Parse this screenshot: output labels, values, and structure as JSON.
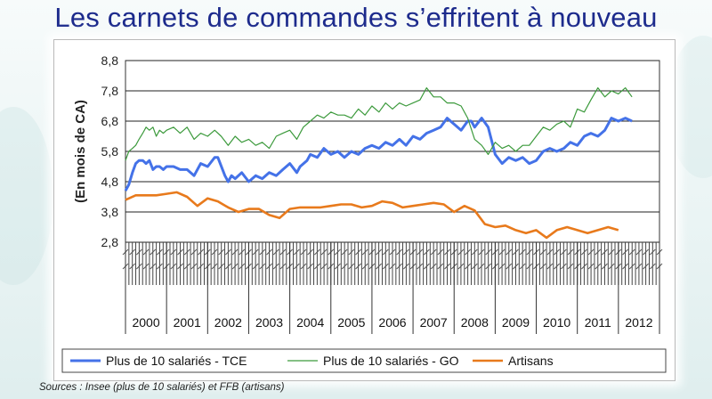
{
  "slide": {
    "title": "Les carnets de commandes s’effritent à nouveau",
    "source": "Sources : Insee (plus de 10 salariés) et FFB (artisans)"
  },
  "chart_data": {
    "type": "line",
    "title": "",
    "xlabel": "",
    "ylabel": "(En mois de CA)",
    "ylim": [
      2.8,
      8.8
    ],
    "y_ticks": [
      "2,8",
      "3,8",
      "4,8",
      "5,8",
      "6,8",
      "7,8",
      "8,8"
    ],
    "grid": true,
    "legend_position": "bottom",
    "x_years": [
      "2000",
      "2001",
      "2002",
      "2003",
      "2004",
      "2005",
      "2006",
      "2007",
      "2008",
      "2009",
      "2010",
      "2011",
      "2012"
    ],
    "x_range": [
      2000.0,
      2013.0
    ],
    "series": [
      {
        "name": "Plus de 10 salariés - TCE",
        "color": "#4472e8",
        "x": [
          2000.0,
          2000.08,
          2000.17,
          2000.25,
          2000.33,
          2000.42,
          2000.5,
          2000.58,
          2000.67,
          2000.75,
          2000.83,
          2000.92,
          2001.0,
          2001.17,
          2001.33,
          2001.5,
          2001.67,
          2001.83,
          2002.0,
          2002.17,
          2002.25,
          2002.42,
          2002.5,
          2002.58,
          2002.67,
          2002.83,
          2003.0,
          2003.17,
          2003.33,
          2003.5,
          2003.67,
          2003.83,
          2004.0,
          2004.17,
          2004.25,
          2004.42,
          2004.5,
          2004.67,
          2004.83,
          2005.0,
          2005.17,
          2005.33,
          2005.5,
          2005.67,
          2005.83,
          2006.0,
          2006.17,
          2006.33,
          2006.5,
          2006.67,
          2006.83,
          2007.0,
          2007.17,
          2007.33,
          2007.5,
          2007.67,
          2007.83,
          2008.0,
          2008.17,
          2008.33,
          2008.42,
          2008.5,
          2008.67,
          2008.83,
          2009.0,
          2009.17,
          2009.33,
          2009.5,
          2009.67,
          2009.83,
          2010.0,
          2010.17,
          2010.33,
          2010.5,
          2010.67,
          2010.83,
          2011.0,
          2011.17,
          2011.33,
          2011.5,
          2011.67,
          2011.83,
          2012.0,
          2012.17,
          2012.33
        ],
        "values": [
          4.5,
          4.7,
          5.1,
          5.4,
          5.5,
          5.5,
          5.4,
          5.5,
          5.2,
          5.3,
          5.3,
          5.2,
          5.3,
          5.3,
          5.2,
          5.2,
          5.0,
          5.4,
          5.3,
          5.6,
          5.6,
          5.0,
          4.8,
          5.0,
          4.9,
          5.1,
          4.8,
          5.0,
          4.9,
          5.1,
          5.0,
          5.2,
          5.4,
          5.1,
          5.3,
          5.5,
          5.7,
          5.6,
          5.9,
          5.7,
          5.8,
          5.6,
          5.8,
          5.7,
          5.9,
          6.0,
          5.9,
          6.1,
          6.0,
          6.2,
          6.0,
          6.3,
          6.2,
          6.4,
          6.5,
          6.6,
          6.9,
          6.7,
          6.5,
          6.8,
          6.8,
          6.6,
          6.9,
          6.6,
          5.7,
          5.4,
          5.6,
          5.5,
          5.6,
          5.4,
          5.5,
          5.8,
          5.9,
          5.8,
          5.9,
          6.1,
          6.0,
          6.3,
          6.4,
          6.3,
          6.5,
          6.9,
          6.8,
          6.9,
          6.8
        ]
      },
      {
        "name": "Plus de 10 salariés - GO",
        "color": "#3c9a3c",
        "x": [
          2000.0,
          2000.08,
          2000.17,
          2000.25,
          2000.33,
          2000.42,
          2000.5,
          2000.58,
          2000.67,
          2000.75,
          2000.83,
          2000.92,
          2001.0,
          2001.17,
          2001.33,
          2001.5,
          2001.67,
          2001.83,
          2002.0,
          2002.17,
          2002.33,
          2002.5,
          2002.67,
          2002.83,
          2003.0,
          2003.17,
          2003.33,
          2003.5,
          2003.67,
          2003.83,
          2004.0,
          2004.17,
          2004.33,
          2004.5,
          2004.67,
          2004.83,
          2005.0,
          2005.17,
          2005.33,
          2005.5,
          2005.67,
          2005.83,
          2006.0,
          2006.17,
          2006.33,
          2006.5,
          2006.67,
          2006.83,
          2007.0,
          2007.17,
          2007.33,
          2007.5,
          2007.67,
          2007.83,
          2008.0,
          2008.17,
          2008.33,
          2008.5,
          2008.67,
          2008.83,
          2009.0,
          2009.17,
          2009.33,
          2009.5,
          2009.67,
          2009.83,
          2010.0,
          2010.17,
          2010.33,
          2010.5,
          2010.67,
          2010.83,
          2011.0,
          2011.17,
          2011.33,
          2011.5,
          2011.67,
          2011.83,
          2012.0,
          2012.17,
          2012.33
        ],
        "values": [
          5.5,
          5.8,
          5.9,
          6.0,
          6.2,
          6.4,
          6.6,
          6.5,
          6.6,
          6.3,
          6.5,
          6.4,
          6.5,
          6.6,
          6.4,
          6.6,
          6.2,
          6.4,
          6.3,
          6.5,
          6.3,
          6.0,
          6.3,
          6.1,
          6.2,
          6.0,
          6.1,
          5.9,
          6.3,
          6.4,
          6.5,
          6.2,
          6.6,
          6.8,
          7.0,
          6.9,
          7.1,
          7.0,
          7.0,
          6.9,
          7.2,
          7.0,
          7.3,
          7.1,
          7.4,
          7.2,
          7.4,
          7.3,
          7.4,
          7.5,
          7.9,
          7.6,
          7.6,
          7.4,
          7.4,
          7.3,
          6.9,
          6.2,
          6.0,
          5.7,
          6.1,
          5.9,
          6.0,
          5.8,
          6.0,
          6.0,
          6.3,
          6.6,
          6.5,
          6.7,
          6.8,
          6.6,
          7.2,
          7.1,
          7.5,
          7.9,
          7.6,
          7.8,
          7.7,
          7.9,
          7.6
        ]
      },
      {
        "name": "Artisans",
        "color": "#e87a1c",
        "x": [
          2000.0,
          2000.25,
          2000.5,
          2000.75,
          2001.0,
          2001.25,
          2001.5,
          2001.75,
          2002.0,
          2002.25,
          2002.5,
          2002.75,
          2003.0,
          2003.25,
          2003.5,
          2003.75,
          2004.0,
          2004.25,
          2004.5,
          2004.75,
          2005.0,
          2005.25,
          2005.5,
          2005.75,
          2006.0,
          2006.25,
          2006.5,
          2006.75,
          2007.0,
          2007.25,
          2007.5,
          2007.75,
          2008.0,
          2008.25,
          2008.5,
          2008.75,
          2009.0,
          2009.25,
          2009.5,
          2009.75,
          2010.0,
          2010.25,
          2010.5,
          2010.75,
          2011.0,
          2011.25,
          2011.5,
          2011.75,
          2012.0
        ],
        "values": [
          4.2,
          4.35,
          4.35,
          4.35,
          4.4,
          4.45,
          4.3,
          4.0,
          4.25,
          4.15,
          3.95,
          3.8,
          3.9,
          3.9,
          3.7,
          3.6,
          3.9,
          3.95,
          3.95,
          3.95,
          4.0,
          4.05,
          4.05,
          3.95,
          4.0,
          4.15,
          4.1,
          3.95,
          4.0,
          4.05,
          4.1,
          4.05,
          3.8,
          4.0,
          3.85,
          3.4,
          3.3,
          3.35,
          3.2,
          3.1,
          3.2,
          2.95,
          3.2,
          3.3,
          3.2,
          3.1,
          3.2,
          3.3,
          3.2
        ]
      }
    ]
  }
}
